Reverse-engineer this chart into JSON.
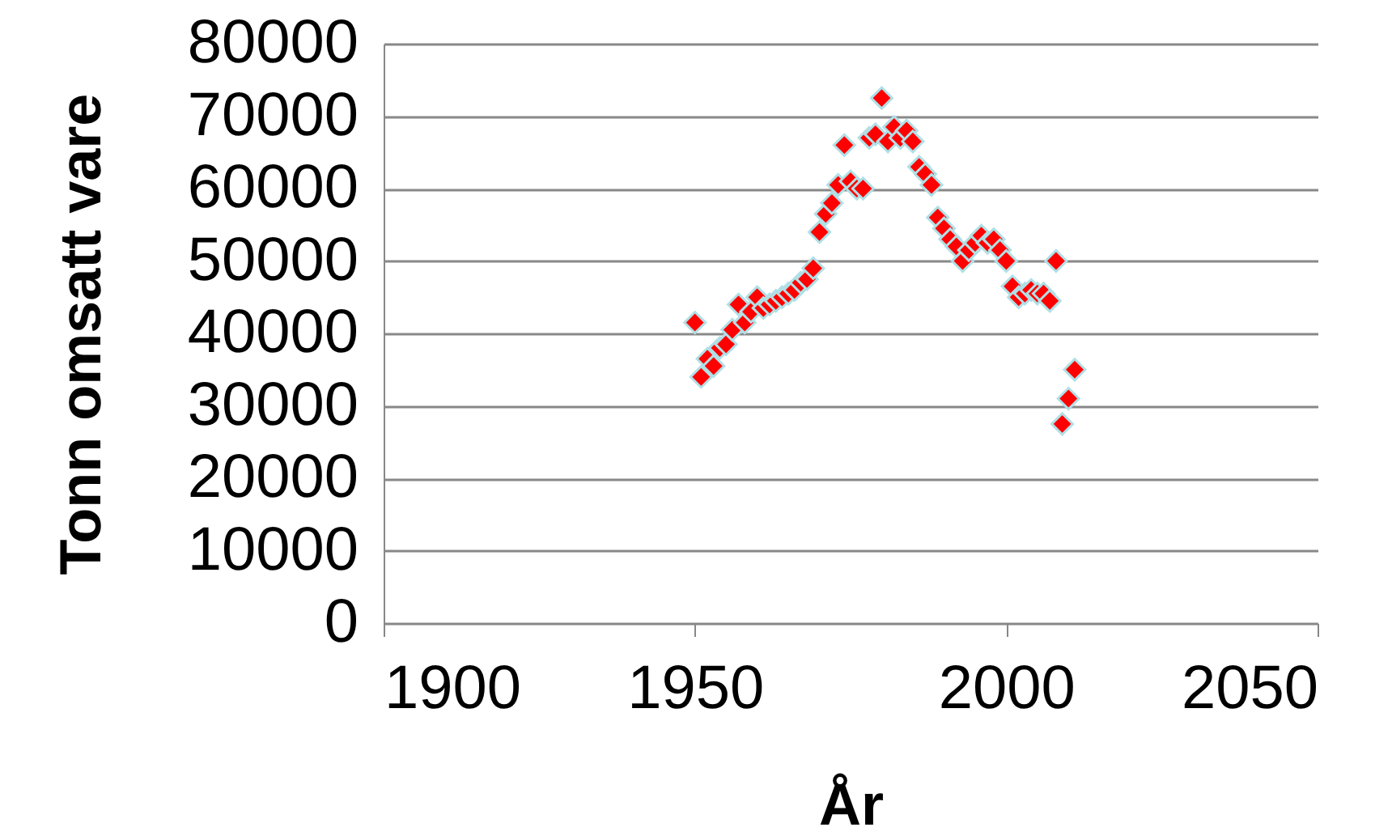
{
  "chart_data": {
    "type": "scatter",
    "xlabel": "År",
    "ylabel": "Tonn omsatt vare",
    "x": [
      1950,
      1951,
      1952,
      1953,
      1954,
      1955,
      1956,
      1957,
      1958,
      1959,
      1960,
      1961,
      1962,
      1963,
      1964,
      1965,
      1966,
      1967,
      1968,
      1969,
      1970,
      1971,
      1972,
      1973,
      1974,
      1975,
      1976,
      1977,
      1978,
      1979,
      1980,
      1981,
      1982,
      1983,
      1984,
      1985,
      1986,
      1987,
      1988,
      1989,
      1990,
      1991,
      1992,
      1993,
      1994,
      1995,
      1996,
      1997,
      1998,
      1999,
      2000,
      2001,
      2002,
      2003,
      2004,
      2005,
      2006,
      2007,
      2008,
      2009,
      2010,
      2011
    ],
    "series": [
      {
        "color": "#ff0000",
        "values": [
          41500,
          34000,
          36500,
          35500,
          38000,
          38500,
          40500,
          44000,
          41500,
          43000,
          45000,
          43500,
          44000,
          44500,
          45000,
          45500,
          46000,
          47000,
          47500,
          49000,
          54000,
          56500,
          58000,
          60500,
          66000,
          61000,
          60000,
          60000,
          67000,
          67500,
          72500,
          66500,
          68500,
          67000,
          68000,
          66500,
          63000,
          62000,
          60500,
          56000,
          54500,
          53000,
          52000,
          50000,
          51500,
          52500,
          53500,
          52500,
          53000,
          51500,
          50000,
          46500,
          45000,
          45500,
          46000,
          45500,
          45500,
          44500,
          50000,
          27500,
          31000,
          35000
        ]
      }
    ],
    "xlim": [
      1900,
      2050
    ],
    "xticks": [
      1900,
      1950,
      2000,
      2050
    ],
    "ylim": [
      0,
      80000
    ],
    "yticks": [
      0,
      10000,
      20000,
      30000,
      40000,
      50000,
      60000,
      70000,
      80000
    ],
    "grid": "y",
    "marker": "diamond"
  }
}
